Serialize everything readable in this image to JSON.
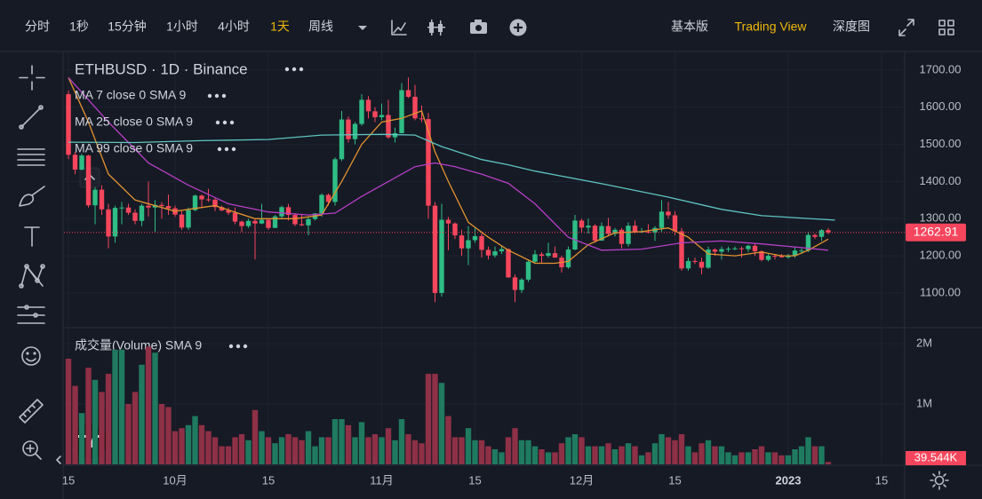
{
  "toolbar": {
    "intervals": [
      "分时",
      "1秒",
      "15分钟",
      "1小时",
      "4小时",
      "1天",
      "周线"
    ],
    "active_interval": 5,
    "views": [
      "基本版",
      "Trading View",
      "深度图"
    ],
    "active_view": 1
  },
  "chart_data": [
    {
      "type": "candlestick",
      "title": "ETHBUSD · 1D · Binance",
      "up_color": "#2ebd85",
      "down_color": "#f6465d",
      "xlim": [
        -0.67,
        125.47
      ],
      "ylim": [
        1009,
        1750
      ],
      "yticks": [
        {
          "value": 1100,
          "label": "1100.00"
        },
        {
          "value": 1200,
          "label": "1200.00"
        },
        {
          "value": 1300,
          "label": "1300.00"
        },
        {
          "value": 1400,
          "label": "1400.00"
        },
        {
          "value": 1500,
          "label": "1500.00"
        },
        {
          "value": 1600,
          "label": "1600.00"
        },
        {
          "value": 1700,
          "label": "1700.00"
        }
      ],
      "grid": true,
      "last_price": 1262.91,
      "open": [
        1635,
        1472,
        1432,
        1470,
        1336,
        1378,
        1325,
        1252,
        1329,
        1330,
        1316,
        1294,
        1335,
        1330,
        1337,
        1334,
        1328,
        1311,
        1276,
        1323,
        1362,
        1352,
        1351,
        1331,
        1322,
        1316,
        1292,
        1280,
        1294,
        1287,
        1297,
        1275,
        1306,
        1331,
        1310,
        1285,
        1282,
        1299,
        1314,
        1364,
        1345,
        1460,
        1567,
        1514,
        1555,
        1620,
        1589,
        1573,
        1579,
        1519,
        1530,
        1646,
        1628,
        1570,
        1568,
        1335,
        1100,
        1297,
        1287,
        1255,
        1220,
        1242,
        1253,
        1216,
        1201,
        1212,
        1218,
        1142,
        1108,
        1136,
        1184,
        1204,
        1200,
        1207,
        1195,
        1169,
        1217,
        1295,
        1276,
        1281,
        1241,
        1280,
        1259,
        1270,
        1232,
        1281,
        1264,
        1265,
        1263,
        1275,
        1319,
        1309,
        1266,
        1166,
        1186,
        1184,
        1168,
        1217,
        1211,
        1218,
        1219,
        1220,
        1218,
        1227,
        1212,
        1189,
        1200,
        1199,
        1196,
        1200,
        1214,
        1214,
        1256,
        1251,
        1269
      ],
      "high": [
        1645,
        1480,
        1475,
        1472,
        1385,
        1390,
        1340,
        1335,
        1345,
        1340,
        1325,
        1340,
        1400,
        1350,
        1345,
        1365,
        1335,
        1320,
        1330,
        1365,
        1365,
        1380,
        1355,
        1335,
        1330,
        1330,
        1295,
        1300,
        1300,
        1340,
        1300,
        1310,
        1335,
        1340,
        1315,
        1310,
        1305,
        1315,
        1368,
        1368,
        1465,
        1590,
        1575,
        1560,
        1635,
        1630,
        1600,
        1610,
        1620,
        1545,
        1665,
        1680,
        1660,
        1605,
        1585,
        1345,
        1340,
        1305,
        1290,
        1270,
        1280,
        1275,
        1260,
        1225,
        1225,
        1225,
        1220,
        1150,
        1140,
        1190,
        1215,
        1210,
        1235,
        1225,
        1200,
        1225,
        1310,
        1300,
        1300,
        1285,
        1290,
        1302,
        1275,
        1275,
        1290,
        1295,
        1275,
        1285,
        1280,
        1350,
        1345,
        1320,
        1275,
        1195,
        1195,
        1195,
        1225,
        1220,
        1225,
        1225,
        1225,
        1225,
        1230,
        1235,
        1215,
        1205,
        1205,
        1205,
        1205,
        1222,
        1220,
        1265,
        1260,
        1272,
        1275
      ],
      "low": [
        1460,
        1420,
        1430,
        1330,
        1285,
        1310,
        1220,
        1235,
        1285,
        1310,
        1285,
        1280,
        1305,
        1265,
        1300,
        1310,
        1305,
        1270,
        1270,
        1320,
        1330,
        1345,
        1320,
        1320,
        1310,
        1285,
        1265,
        1275,
        1190,
        1285,
        1270,
        1275,
        1300,
        1295,
        1280,
        1280,
        1255,
        1295,
        1305,
        1335,
        1335,
        1455,
        1505,
        1500,
        1550,
        1570,
        1560,
        1565,
        1515,
        1505,
        1530,
        1625,
        1565,
        1560,
        1300,
        1075,
        1090,
        1215,
        1245,
        1200,
        1175,
        1235,
        1195,
        1190,
        1195,
        1205,
        1140,
        1075,
        1100,
        1130,
        1180,
        1180,
        1195,
        1195,
        1155,
        1165,
        1215,
        1262,
        1260,
        1235,
        1240,
        1255,
        1252,
        1220,
        1225,
        1260,
        1262,
        1260,
        1240,
        1265,
        1300,
        1255,
        1160,
        1160,
        1178,
        1150,
        1165,
        1200,
        1190,
        1210,
        1215,
        1195,
        1210,
        1200,
        1185,
        1185,
        1190,
        1195,
        1192,
        1195,
        1205,
        1210,
        1245,
        1240,
        1258
      ],
      "close": [
        1472,
        1432,
        1470,
        1336,
        1378,
        1325,
        1252,
        1329,
        1330,
        1316,
        1294,
        1335,
        1330,
        1337,
        1334,
        1328,
        1311,
        1276,
        1323,
        1362,
        1352,
        1351,
        1331,
        1322,
        1316,
        1292,
        1280,
        1294,
        1287,
        1297,
        1275,
        1306,
        1331,
        1310,
        1285,
        1282,
        1299,
        1314,
        1364,
        1345,
        1460,
        1567,
        1514,
        1555,
        1620,
        1589,
        1573,
        1579,
        1519,
        1530,
        1646,
        1628,
        1570,
        1568,
        1335,
        1100,
        1297,
        1287,
        1255,
        1220,
        1242,
        1253,
        1216,
        1201,
        1212,
        1218,
        1142,
        1108,
        1136,
        1184,
        1204,
        1200,
        1207,
        1195,
        1169,
        1217,
        1295,
        1276,
        1281,
        1241,
        1280,
        1259,
        1270,
        1232,
        1281,
        1264,
        1265,
        1263,
        1275,
        1319,
        1309,
        1266,
        1166,
        1186,
        1184,
        1168,
        1217,
        1211,
        1218,
        1219,
        1220,
        1218,
        1227,
        1212,
        1189,
        1200,
        1199,
        1196,
        1200,
        1214,
        1214,
        1256,
        1251,
        1269,
        1262.91
      ],
      "series": [
        {
          "name": "MA 7 close 0 SMA 9",
          "color": "#e2932f",
          "x": [
            0,
            3,
            6,
            10,
            16,
            22,
            28,
            34,
            38,
            41,
            44,
            47,
            50,
            53,
            55,
            57,
            60,
            63,
            66,
            70,
            73,
            75,
            78,
            82,
            86,
            90,
            93,
            96,
            100,
            104,
            107,
            109,
            111,
            114
          ],
          "values": [
            1680,
            1560,
            1420,
            1350,
            1320,
            1335,
            1300,
            1300,
            1310,
            1400,
            1500,
            1560,
            1570,
            1590,
            1480,
            1400,
            1290,
            1250,
            1215,
            1180,
            1180,
            1185,
            1230,
            1262,
            1265,
            1275,
            1250,
            1205,
            1200,
            1210,
            1200,
            1200,
            1215,
            1245
          ]
        },
        {
          "name": "MA 25 close 0 SMA 9",
          "color": "#b63fc6",
          "x": [
            0,
            6,
            12,
            18,
            24,
            30,
            36,
            40,
            44,
            48,
            52,
            55,
            58,
            62,
            66,
            70,
            75,
            80,
            86,
            92,
            98,
            104,
            110,
            114
          ],
          "values": [
            1680,
            1560,
            1450,
            1390,
            1340,
            1318,
            1310,
            1315,
            1360,
            1400,
            1440,
            1450,
            1440,
            1420,
            1395,
            1340,
            1250,
            1215,
            1218,
            1235,
            1240,
            1232,
            1222,
            1215
          ]
        },
        {
          "name": "MA 99 close 0 SMA 9",
          "color": "#5ec4c0",
          "x": [
            0,
            10,
            20,
            30,
            38,
            47,
            52,
            56,
            62,
            66,
            70,
            80,
            90,
            98,
            104,
            115
          ],
          "values": [
            1506,
            1505,
            1510,
            1513,
            1525,
            1527,
            1525,
            1494,
            1459,
            1445,
            1428,
            1394,
            1358,
            1325,
            1308,
            1296
          ]
        }
      ]
    },
    {
      "type": "bar",
      "title": "成交量(Volume) SMA 9",
      "up_color": "#1f7a5f",
      "down_color": "#8e3046",
      "xlim": [
        -0.67,
        125.47
      ],
      "ylim": [
        0,
        2250000
      ],
      "yticks": [
        {
          "value": 1000000,
          "label": "1M"
        },
        {
          "value": 2000000,
          "label": "2M"
        }
      ],
      "xticks": [
        {
          "value": 0,
          "label": "15"
        },
        {
          "value": 16,
          "label": "10月"
        },
        {
          "value": 30,
          "label": "15"
        },
        {
          "value": 47,
          "label": "11月"
        },
        {
          "value": 61,
          "label": "15"
        },
        {
          "value": 77,
          "label": "12月"
        },
        {
          "value": 91,
          "label": "15"
        },
        {
          "value": 108,
          "label": "2023"
        },
        {
          "value": 122,
          "label": "15"
        }
      ],
      "last_marker": {
        "value": 39544,
        "label": "39.544K"
      },
      "values": [
        1750000,
        1300000,
        850000,
        1600000,
        1400000,
        1200000,
        1500000,
        1900000,
        1900000,
        1000000,
        1200000,
        1650000,
        1950000,
        1850000,
        1000000,
        950000,
        550000,
        600000,
        650000,
        800000,
        650000,
        550000,
        450000,
        300000,
        300000,
        450000,
        500000,
        400000,
        900000,
        550000,
        450000,
        350000,
        450000,
        500000,
        450000,
        400000,
        550000,
        300000,
        450000,
        450000,
        750000,
        750000,
        650000,
        450000,
        700000,
        450000,
        500000,
        450000,
        600000,
        400000,
        750000,
        500000,
        400000,
        350000,
        1500000,
        1500000,
        1350000,
        800000,
        450000,
        450000,
        600000,
        400000,
        400000,
        300000,
        250000,
        200000,
        450000,
        600000,
        400000,
        400000,
        300000,
        250000,
        200000,
        200000,
        350000,
        450000,
        500000,
        450000,
        300000,
        300000,
        300000,
        350000,
        250000,
        300000,
        350000,
        300000,
        150000,
        200000,
        350000,
        500000,
        450000,
        400000,
        500000,
        300000,
        200000,
        350000,
        400000,
        300000,
        300000,
        200000,
        150000,
        200000,
        200000,
        250000,
        300000,
        200000,
        200000,
        150000,
        150000,
        250000,
        300000,
        450000,
        300000,
        300000,
        39544
      ]
    }
  ]
}
